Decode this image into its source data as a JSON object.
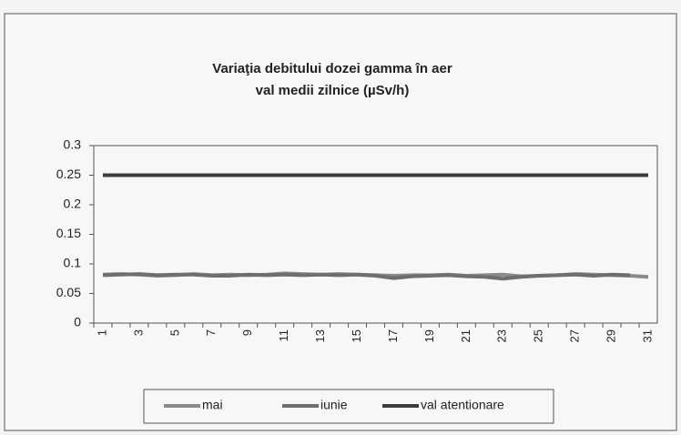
{
  "chart_data": {
    "type": "line",
    "title": "Variaţia debitului dozei gamma în aer",
    "subtitle": "val medii zilnice (µSv/h)",
    "categories": [
      "1",
      null,
      "3",
      null,
      "5",
      null,
      "7",
      null,
      "9",
      null,
      "11",
      null,
      "13",
      null,
      "15",
      null,
      "17",
      null,
      "19",
      null,
      "21",
      null,
      "23",
      null,
      "25",
      null,
      "27",
      null,
      "29",
      null,
      "31"
    ],
    "series": [
      {
        "name": "mai",
        "color": "#8a8a8a",
        "values": [
          0.082,
          0.083,
          0.082,
          0.08,
          0.081,
          0.083,
          0.081,
          0.082,
          0.081,
          0.082,
          0.084,
          0.083,
          0.082,
          0.083,
          0.082,
          0.081,
          0.08,
          0.081,
          0.081,
          0.082,
          0.08,
          0.081,
          0.082,
          0.079,
          0.08,
          0.081,
          0.083,
          0.082,
          0.081,
          0.08,
          0.078
        ]
      },
      {
        "name": "iunie",
        "color": "#6e6e6e",
        "values": [
          0.081,
          0.082,
          0.083,
          0.081,
          0.082,
          0.082,
          0.08,
          0.08,
          0.082,
          0.081,
          0.082,
          0.081,
          0.082,
          0.081,
          0.082,
          0.08,
          0.076,
          0.079,
          0.08,
          0.081,
          0.079,
          0.078,
          0.075,
          0.078,
          0.08,
          0.081,
          0.082,
          0.08,
          0.082,
          0.081,
          null
        ]
      },
      {
        "name": "val atentionare",
        "color": "#3c3c3c",
        "values": [
          0.25,
          0.25,
          0.25,
          0.25,
          0.25,
          0.25,
          0.25,
          0.25,
          0.25,
          0.25,
          0.25,
          0.25,
          0.25,
          0.25,
          0.25,
          0.25,
          0.25,
          0.25,
          0.25,
          0.25,
          0.25,
          0.25,
          0.25,
          0.25,
          0.25,
          0.25,
          0.25,
          0.25,
          0.25,
          0.25,
          0.25
        ]
      }
    ],
    "ylim": [
      0,
      0.3
    ],
    "yticks": [
      0,
      0.05,
      0.1,
      0.15,
      0.2,
      0.25,
      0.3
    ],
    "grid": false,
    "legend": "bottom"
  }
}
